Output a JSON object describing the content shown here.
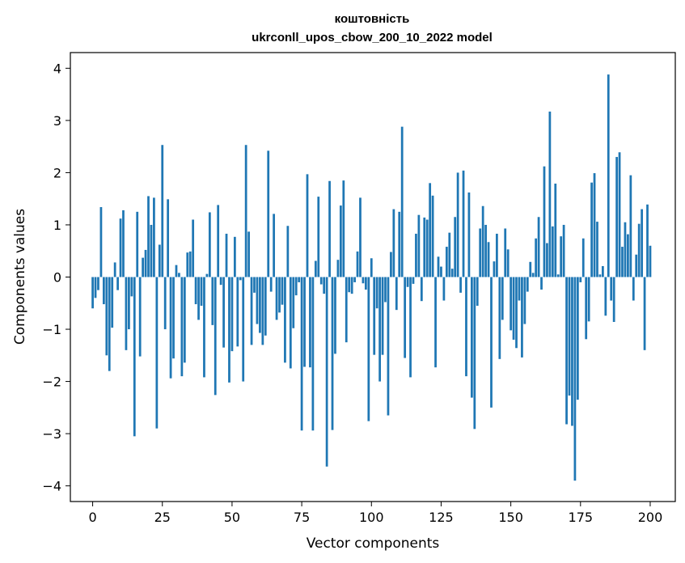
{
  "chart_data": {
    "type": "bar",
    "title_line1": "коштовність",
    "title_line2": "ukrconll_upos_cbow_200_10_2022 model",
    "xlabel": "Vector components",
    "ylabel": "Components values",
    "xlim": [
      -8,
      209
    ],
    "ylim": [
      -4.3,
      4.3
    ],
    "xticks": [
      0,
      25,
      50,
      75,
      100,
      125,
      150,
      175,
      200
    ],
    "xtick_labels": [
      "0",
      "25",
      "50",
      "75",
      "100",
      "125",
      "150",
      "175",
      "200"
    ],
    "yticks": [
      4,
      3,
      2,
      1,
      0,
      -1,
      -2,
      -3,
      -4
    ],
    "ytick_labels": [
      "4",
      "3",
      "2",
      "1",
      "0",
      "−1",
      "−2",
      "−3",
      "−4"
    ],
    "bar_color": "#1f77b4",
    "grid": false,
    "values": [
      -0.6,
      -0.4,
      -0.25,
      1.34,
      -0.52,
      -1.5,
      -1.8,
      -0.97,
      0.28,
      -0.25,
      1.12,
      1.28,
      -1.4,
      -1.0,
      -0.37,
      -3.05,
      1.25,
      -1.52,
      0.37,
      0.52,
      1.55,
      1.0,
      1.52,
      -2.9,
      0.62,
      2.53,
      -1.0,
      1.49,
      -1.94,
      -1.56,
      0.23,
      0.08,
      -1.9,
      -1.64,
      0.47,
      0.49,
      1.1,
      -0.52,
      -0.82,
      -0.55,
      -1.92,
      0.06,
      1.24,
      -0.92,
      -2.26,
      1.38,
      -0.15,
      -1.35,
      0.83,
      -2.02,
      -1.42,
      0.77,
      -1.33,
      -0.06,
      -2.0,
      2.53,
      0.87,
      -1.3,
      -0.3,
      -0.9,
      -1.07,
      -1.3,
      -1.12,
      2.42,
      -0.28,
      1.21,
      -0.82,
      -0.68,
      -0.53,
      -1.64,
      0.98,
      -1.75,
      -0.98,
      -0.35,
      -0.1,
      -2.94,
      -1.72,
      1.97,
      -1.73,
      -2.94,
      0.31,
      1.54,
      -0.14,
      -0.32,
      -3.63,
      1.84,
      -2.93,
      -1.47,
      0.33,
      1.37,
      1.85,
      -1.25,
      -0.29,
      -0.32,
      -0.1,
      0.49,
      1.52,
      -0.12,
      -0.24,
      -2.76,
      0.36,
      -1.49,
      -0.6,
      -2.0,
      -1.49,
      -0.48,
      -2.65,
      0.48,
      1.3,
      -0.63,
      1.25,
      2.88,
      -1.55,
      -0.19,
      -1.92,
      -0.13,
      0.83,
      1.19,
      -0.46,
      1.14,
      1.1,
      1.8,
      1.56,
      -1.73,
      0.39,
      0.2,
      -0.45,
      0.58,
      0.85,
      0.16,
      1.15,
      2.0,
      -0.3,
      2.04,
      -1.9,
      1.62,
      -2.31,
      -2.91,
      -0.55,
      0.93,
      1.36,
      1.0,
      0.67,
      -2.5,
      0.3,
      0.83,
      -1.57,
      -0.82,
      0.93,
      0.53,
      -1.02,
      -1.2,
      -1.36,
      -0.45,
      -1.54,
      -0.9,
      -0.28,
      0.29,
      0.08,
      0.74,
      1.15,
      -0.24,
      2.12,
      0.65,
      3.17,
      0.97,
      1.79,
      0.05,
      0.78,
      1.0,
      -2.82,
      -2.27,
      -2.85,
      -3.9,
      -2.35,
      -0.1,
      0.74,
      -1.19,
      -0.85,
      1.81,
      1.99,
      1.06,
      0.05,
      0.21,
      -0.74,
      3.88,
      -0.45,
      -0.86,
      2.3,
      2.39,
      0.58,
      1.05,
      0.82,
      1.95,
      -0.45,
      0.43,
      1.02,
      1.3,
      -1.4,
      1.39,
      0.6
    ]
  }
}
